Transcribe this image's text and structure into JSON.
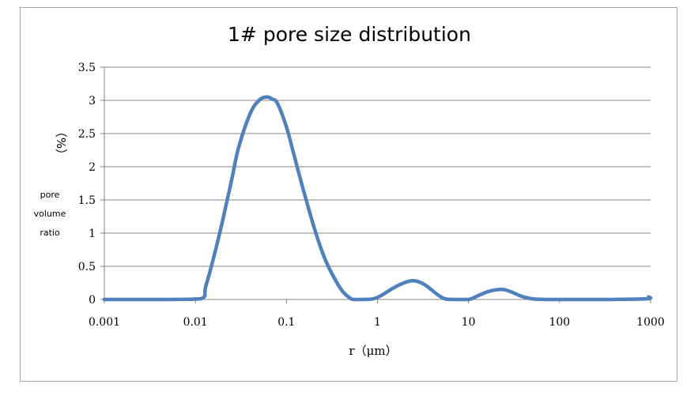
{
  "chart_data": {
    "type": "line",
    "title": "1# pore size distribution",
    "xlabel": "r（μm）",
    "ylabel_unit": "（%）",
    "ylabel_lines": [
      "pore",
      "volume",
      "ratio"
    ],
    "x_scale": "log",
    "xlim": [
      0.001,
      1000
    ],
    "ylim": [
      0,
      3.5
    ],
    "grid": true,
    "x_ticks": [
      0.001,
      0.01,
      0.1,
      1,
      10,
      100,
      1000
    ],
    "x_tick_labels": [
      "0.001",
      "0.01",
      "0.1",
      "1",
      "10",
      "100",
      "1000"
    ],
    "y_ticks": [
      0,
      0.5,
      1,
      1.5,
      2,
      2.5,
      3,
      3.5
    ],
    "y_tick_labels": [
      "0",
      "0.5",
      "1",
      "1.5",
      "2",
      "2.5",
      "3",
      "3.5"
    ],
    "line_color": "#4f81bd",
    "series": [
      {
        "x": [
          0.001,
          0.002,
          0.005,
          0.0115,
          0.013,
          0.016,
          0.02,
          0.025,
          0.03,
          0.04,
          0.05,
          0.06,
          0.07,
          0.08,
          0.1,
          0.12,
          0.15,
          0.2,
          0.25,
          0.3,
          0.4,
          0.5,
          0.55,
          0.7,
          0.9,
          1.1,
          1.4,
          1.8,
          2.3,
          2.8,
          3.5,
          4.5,
          5.5,
          7,
          10,
          12,
          15,
          19,
          24,
          30,
          38,
          50,
          70,
          100,
          300,
          900,
          950
        ],
        "y": [
          0,
          0,
          0,
          0.01,
          0.2,
          0.65,
          1.2,
          1.8,
          2.3,
          2.8,
          3.0,
          3.05,
          3.02,
          2.95,
          2.6,
          2.2,
          1.7,
          1.1,
          0.7,
          0.45,
          0.15,
          0.02,
          0,
          0,
          0.01,
          0.06,
          0.15,
          0.23,
          0.28,
          0.27,
          0.2,
          0.08,
          0.01,
          0,
          0,
          0.04,
          0.1,
          0.14,
          0.15,
          0.11,
          0.05,
          0.01,
          0,
          0,
          0,
          0.01,
          0.04
        ]
      }
    ]
  }
}
